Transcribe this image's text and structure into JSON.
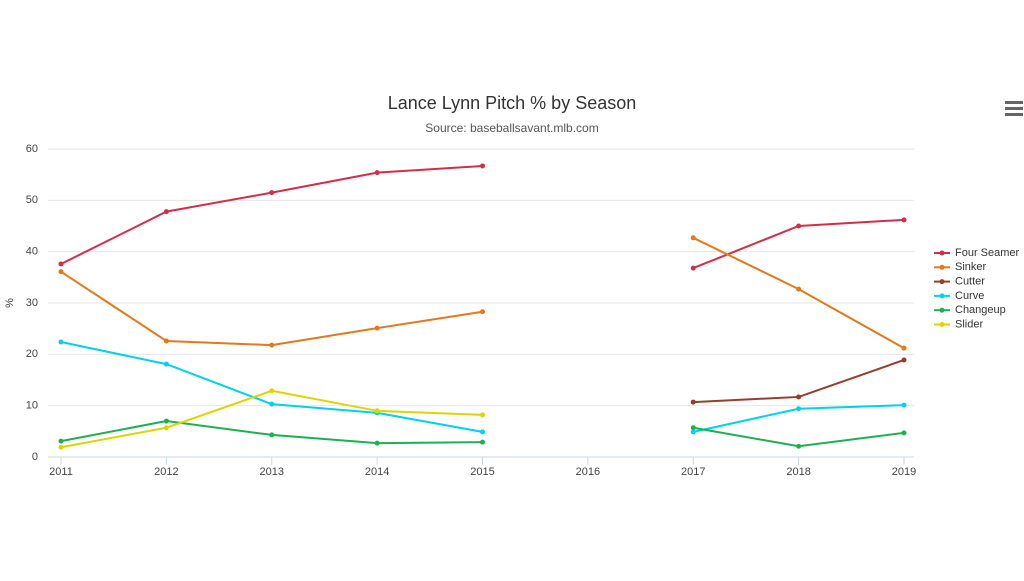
{
  "chart_data": {
    "type": "line",
    "title": "Lance Lynn Pitch % by Season",
    "subtitle": "Source: baseballsavant.mlb.com",
    "y_label": "%",
    "x": [
      2011,
      2012,
      2013,
      2014,
      2015,
      2016,
      2017,
      2018,
      2019
    ],
    "xlim": [
      2011,
      2019
    ],
    "xticks": [
      2011,
      2012,
      2013,
      2014,
      2015,
      2016,
      2017,
      2018,
      2019
    ],
    "ylim": [
      0,
      60
    ],
    "yticks": [
      0,
      10,
      20,
      30,
      40,
      50,
      60
    ],
    "grid": true,
    "legend": "right",
    "series": [
      {
        "name": "Four Seamer",
        "color": "#d22d49",
        "values": [
          37.6,
          47.8,
          51.5,
          55.4,
          56.7,
          null,
          36.8,
          45.0,
          46.2
        ]
      },
      {
        "name": "Sinker",
        "color": "#e07a1c",
        "values": [
          36.1,
          22.6,
          21.8,
          25.1,
          28.3,
          null,
          42.7,
          32.7,
          21.2
        ]
      },
      {
        "name": "Cutter",
        "color": "#933f2c",
        "values": [
          null,
          null,
          null,
          null,
          null,
          null,
          10.7,
          11.7,
          18.9
        ]
      },
      {
        "name": "Curve",
        "color": "#00d1ed",
        "values": [
          22.4,
          18.1,
          10.3,
          8.6,
          4.9,
          null,
          4.9,
          9.4,
          10.1
        ]
      },
      {
        "name": "Changeup",
        "color": "#1db053",
        "values": [
          3.1,
          7.0,
          4.3,
          2.7,
          2.9,
          null,
          5.7,
          2.1,
          4.7
        ]
      },
      {
        "name": "Slider",
        "color": "#ddd400",
        "values": [
          1.9,
          5.7,
          12.9,
          9.0,
          8.2,
          null,
          null,
          null,
          null
        ]
      }
    ]
  }
}
